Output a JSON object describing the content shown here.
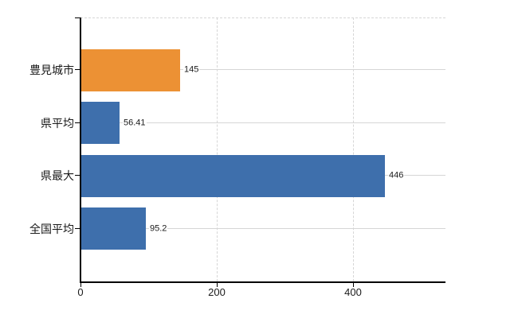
{
  "chart_data": {
    "type": "bar",
    "orientation": "horizontal",
    "title": "",
    "xlabel": "",
    "ylabel": "",
    "categories": [
      "豊見城市",
      "県平均",
      "県最大",
      "全国平均"
    ],
    "values": [
      145,
      56.41,
      446,
      95.2
    ],
    "value_labels": [
      "145",
      "56.41",
      "446",
      "95.2"
    ],
    "bar_colors": [
      "#ec9134",
      "#3e6fac",
      "#3e6fac",
      "#3e6fac"
    ],
    "xticks": [
      0,
      200,
      400
    ],
    "xtick_labels": [
      "0",
      "200",
      "400"
    ],
    "xlim": [
      0,
      536
    ],
    "grid": {
      "horizontal_row_lines": true,
      "vertical_tick_lines": true,
      "top_border_dashed": true
    },
    "legend": null
  },
  "style": {
    "background": "#ffffff",
    "axis_color": "#000000",
    "gridline_color": "#d6d6d6",
    "text_color": "#1a1a1a",
    "accent_orange": "#ec9134",
    "accent_blue": "#3e6fac"
  }
}
